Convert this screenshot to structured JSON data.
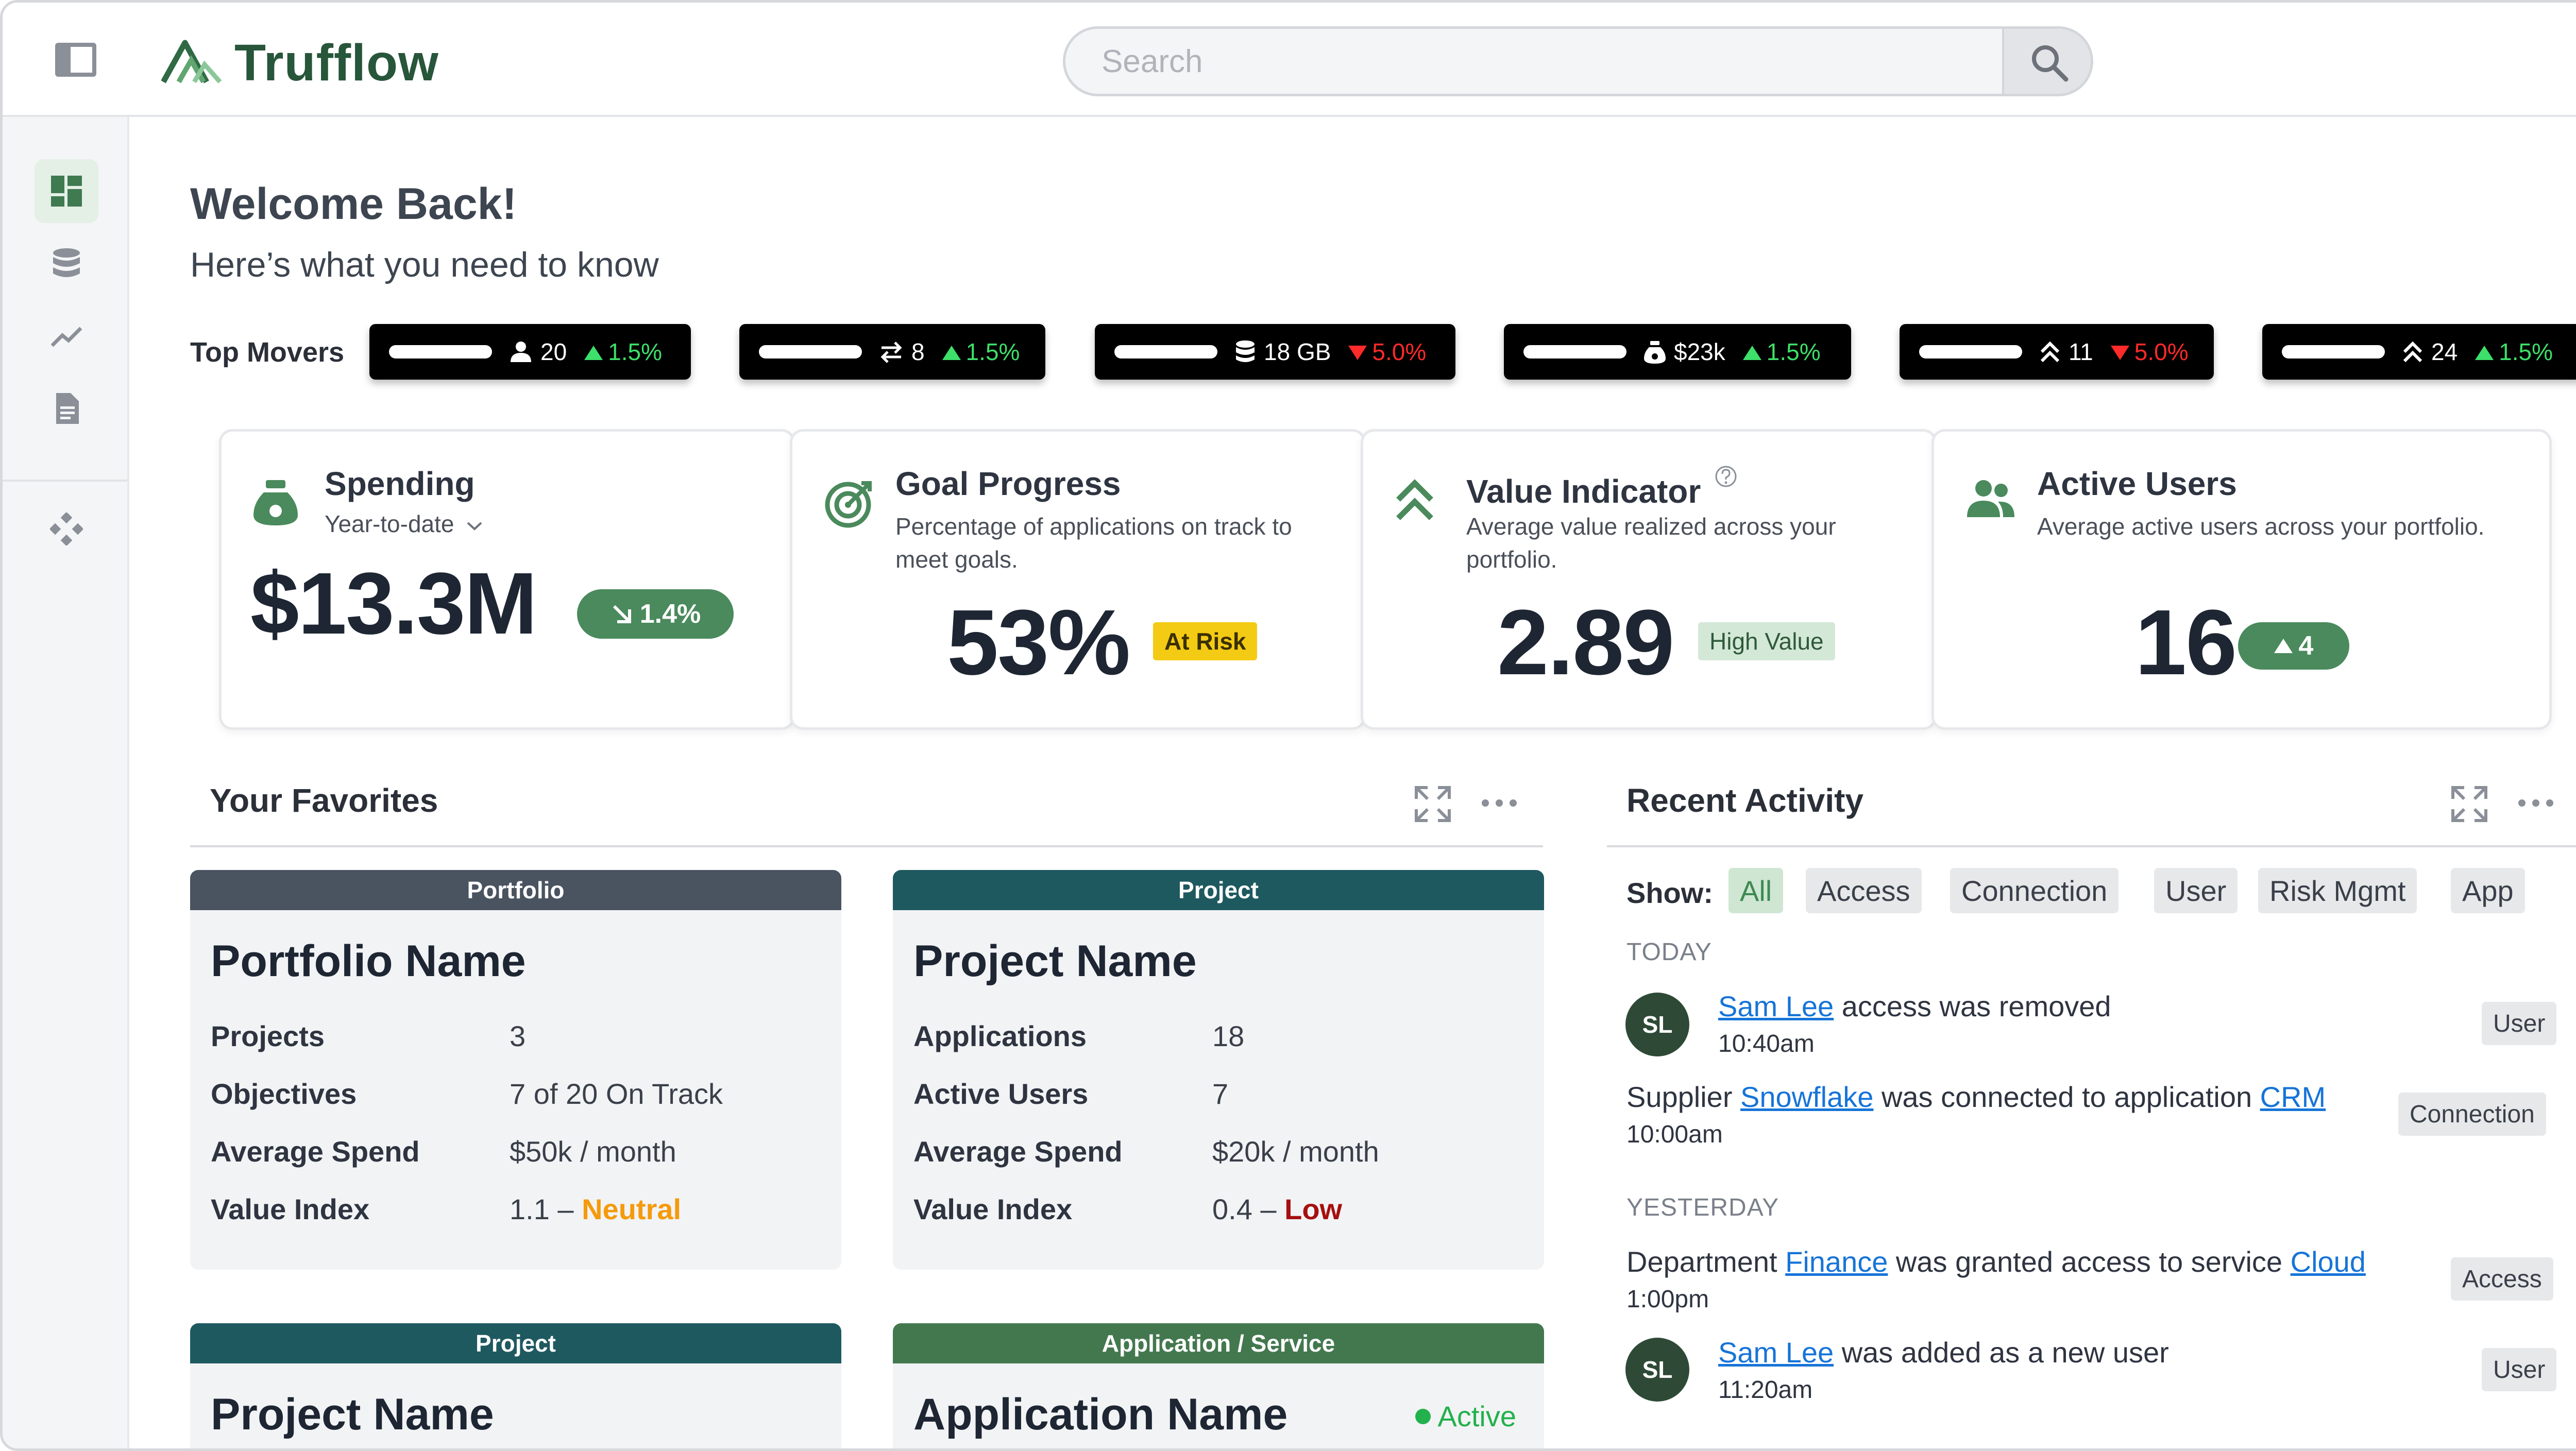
{
  "app": {
    "name": "Trufflow"
  },
  "search": {
    "placeholder": "Search"
  },
  "header": {
    "welcome": "Welcome Back!",
    "subtitle": "Here’s what you need to know"
  },
  "top_movers": {
    "label": "Top Movers",
    "items": [
      {
        "icon": "person-icon",
        "value": "20",
        "change": "1.5%",
        "direction": "up"
      },
      {
        "icon": "swap-icon",
        "value": "8",
        "change": "1.5%",
        "direction": "up"
      },
      {
        "icon": "database-icon",
        "value": "18 GB",
        "change": "5.0%",
        "direction": "down"
      },
      {
        "icon": "money-bag-icon",
        "value": "$23k",
        "change": "1.5%",
        "direction": "up"
      },
      {
        "icon": "double-chevron-up-icon",
        "value": "11",
        "change": "5.0%",
        "direction": "down"
      },
      {
        "icon": "double-chevron-up-icon",
        "value": "24",
        "change": "1.5%",
        "direction": "up"
      }
    ]
  },
  "kpis": {
    "spending": {
      "title": "Spending",
      "period": "Year-to-date",
      "value": "$13.3M",
      "change": "1.4%"
    },
    "goal": {
      "title": "Goal Progress",
      "description": "Percentage of applications on track to meet goals.",
      "value": "53%",
      "status": "At Risk"
    },
    "value_indicator": {
      "title": "Value Indicator",
      "description": "Average value realized across your portfolio.",
      "value": "2.89",
      "status": "High Value"
    },
    "active_users": {
      "title": "Active Users",
      "description": "Average active users across your portfolio.",
      "value": "16",
      "change": "4"
    }
  },
  "favorites": {
    "title": "Your Favorites",
    "cards": [
      {
        "type": "Portfolio",
        "name": "Portfolio Name",
        "rows": [
          {
            "label": "Projects",
            "value": "3"
          },
          {
            "label": "Objectives",
            "value": "7 of 20 On Track"
          },
          {
            "label": "Average Spend",
            "value": "$50k / month"
          },
          {
            "label": "Value Index",
            "value": "1.1 – ",
            "status": "Neutral"
          }
        ]
      },
      {
        "type": "Project",
        "name": "Project Name",
        "rows": [
          {
            "label": "Applications",
            "value": "18"
          },
          {
            "label": "Active Users",
            "value": "7"
          },
          {
            "label": "Average Spend",
            "value": "$20k / month"
          },
          {
            "label": "Value Index",
            "value": "0.4 – ",
            "status": "Low"
          }
        ]
      },
      {
        "type": "Project",
        "name": "Project Name"
      },
      {
        "type": "Application / Service",
        "name": "Application Name",
        "status": "Active"
      }
    ]
  },
  "activity": {
    "title": "Recent Activity",
    "show_label": "Show:",
    "filters": [
      "All",
      "Access",
      "Connection",
      "User",
      "Risk Mgmt",
      "App"
    ],
    "today_label": "TODAY",
    "yesterday_label": "YESTERDAY",
    "items": [
      {
        "avatar": "SL",
        "link1": "Sam Lee",
        "text1": " access was removed",
        "time": "10:40am",
        "tag": "User"
      },
      {
        "prefix": "Supplier ",
        "link1": "Snowflake",
        "text1": " was connected to application ",
        "link2": "CRM",
        "time": "10:00am",
        "tag": "Connection"
      },
      {
        "prefix": "Department ",
        "link1": "Finance",
        "text1": " was granted access to service ",
        "link2": "Cloud",
        "time": "1:00pm",
        "tag": "Access"
      },
      {
        "avatar": "SL",
        "link1": "Sam Lee",
        "text1": " was added as a new user",
        "time": "11:20am",
        "tag": "User"
      }
    ]
  },
  "colors": {
    "brand": "#27563a",
    "accent_green": "#4a8a5c",
    "link": "#1674d8",
    "up": "#3de06a",
    "down": "#ff2a2a"
  }
}
